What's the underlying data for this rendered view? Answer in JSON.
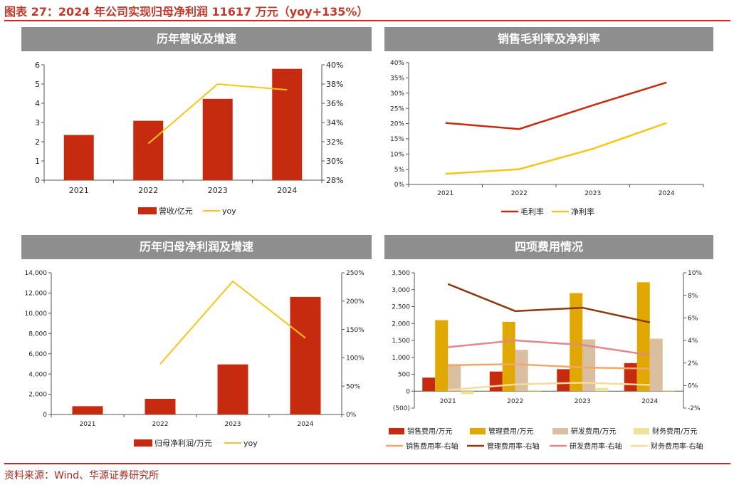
{
  "header": {
    "title": "图表 27：2024 年公司实现归母净利润 11617 万元（yoy+135%）",
    "source": "资料来源：Wind、华源证券研究所"
  },
  "panels": {
    "p1_title": "历年营收及增速",
    "p2_title": "销售毛利率及净利率",
    "p3_title": "历年归母净利润及增速",
    "p4_title": "四项费用情况"
  },
  "colors": {
    "red": "#c62a0f",
    "yellow": "#f5c518",
    "brown": "#8b3a10",
    "gold": "#e0a800",
    "tan": "#d9bfa0",
    "lightyellow": "#ede39a",
    "orange_line": "#f0a868",
    "pink_line": "#e0888c",
    "cream_line": "#f7dc9a",
    "header_bg": "#8e8e8e"
  },
  "chart_data": [
    {
      "id": "revenue",
      "type": "bar",
      "categories": [
        "2021",
        "2022",
        "2023",
        "2024"
      ],
      "series": [
        {
          "name": "营收/亿元",
          "values": [
            2.35,
            3.09,
            4.23,
            5.79
          ],
          "axis": "left",
          "kind": "bar"
        },
        {
          "name": "yoy",
          "values": [
            null,
            31.8,
            38.0,
            37.4
          ],
          "axis": "right",
          "kind": "line"
        }
      ],
      "ylim": [
        0,
        6
      ],
      "yticks": [
        "0",
        "1",
        "2",
        "3",
        "4",
        "5",
        "6"
      ],
      "y2lim": [
        28,
        40
      ],
      "y2ticks": [
        "28%",
        "30%",
        "32%",
        "34%",
        "36%",
        "38%",
        "40%"
      ]
    },
    {
      "id": "margins",
      "type": "line",
      "categories": [
        "2021",
        "2022",
        "2023",
        "2024"
      ],
      "series": [
        {
          "name": "毛利率",
          "values": [
            20.2,
            18.2,
            26.0,
            33.5
          ]
        },
        {
          "name": "净利率",
          "values": [
            3.5,
            5.0,
            11.7,
            20.2
          ]
        }
      ],
      "ylim": [
        0,
        40
      ],
      "yticks": [
        "0%",
        "5%",
        "10%",
        "15%",
        "20%",
        "25%",
        "30%",
        "35%",
        "40%"
      ]
    },
    {
      "id": "net_profit",
      "type": "bar",
      "categories": [
        "2021",
        "2022",
        "2023",
        "2024"
      ],
      "series": [
        {
          "name": "归母净利润/万元",
          "values": [
            820,
            1550,
            4950,
            11617
          ],
          "axis": "left",
          "kind": "bar"
        },
        {
          "name": "yoy",
          "values": [
            null,
            89,
            235,
            135
          ],
          "axis": "right",
          "kind": "line"
        }
      ],
      "ylim": [
        0,
        14000
      ],
      "yticks": [
        "0",
        "2,000",
        "4,000",
        "6,000",
        "8,000",
        "10,000",
        "12,000",
        "14,000"
      ],
      "y2lim": [
        0,
        250
      ],
      "y2ticks": [
        "0%",
        "50%",
        "100%",
        "150%",
        "200%",
        "250%"
      ]
    },
    {
      "id": "expenses",
      "type": "bar",
      "categories": [
        "2021",
        "2022",
        "2023",
        "2024"
      ],
      "series": [
        {
          "name": "销售费用/万元",
          "values": [
            400,
            580,
            650,
            830
          ],
          "axis": "left",
          "kind": "bar"
        },
        {
          "name": "管理费用/万元",
          "values": [
            2100,
            2050,
            2900,
            3220
          ],
          "axis": "left",
          "kind": "bar"
        },
        {
          "name": "研发费用/万元",
          "values": [
            800,
            1220,
            1530,
            1550
          ],
          "axis": "left",
          "kind": "bar"
        },
        {
          "name": "财务费用/万元",
          "values": [
            -90,
            30,
            100,
            30
          ],
          "axis": "left",
          "kind": "bar"
        },
        {
          "name": "销售费用率-右轴",
          "values": [
            1.8,
            1.9,
            1.6,
            1.5
          ],
          "axis": "right",
          "kind": "line"
        },
        {
          "name": "管理费用率-右轴",
          "values": [
            9.0,
            6.6,
            6.9,
            5.6
          ],
          "axis": "right",
          "kind": "line"
        },
        {
          "name": "研发费用率-右轴",
          "values": [
            3.4,
            4.0,
            3.6,
            2.7
          ],
          "axis": "right",
          "kind": "line"
        },
        {
          "name": "财务费用率-右轴",
          "values": [
            -0.4,
            0.1,
            0.25,
            0.05
          ],
          "axis": "right",
          "kind": "line"
        }
      ],
      "ylim": [
        -500,
        3500
      ],
      "yticks": [
        "(500)",
        "0",
        "500",
        "1,000",
        "1,500",
        "2,000",
        "2,500",
        "3,000",
        "3,500"
      ],
      "y2lim": [
        -2,
        10
      ],
      "y2ticks": [
        "-2%",
        "0%",
        "2%",
        "4%",
        "6%",
        "8%",
        "10%"
      ]
    }
  ]
}
